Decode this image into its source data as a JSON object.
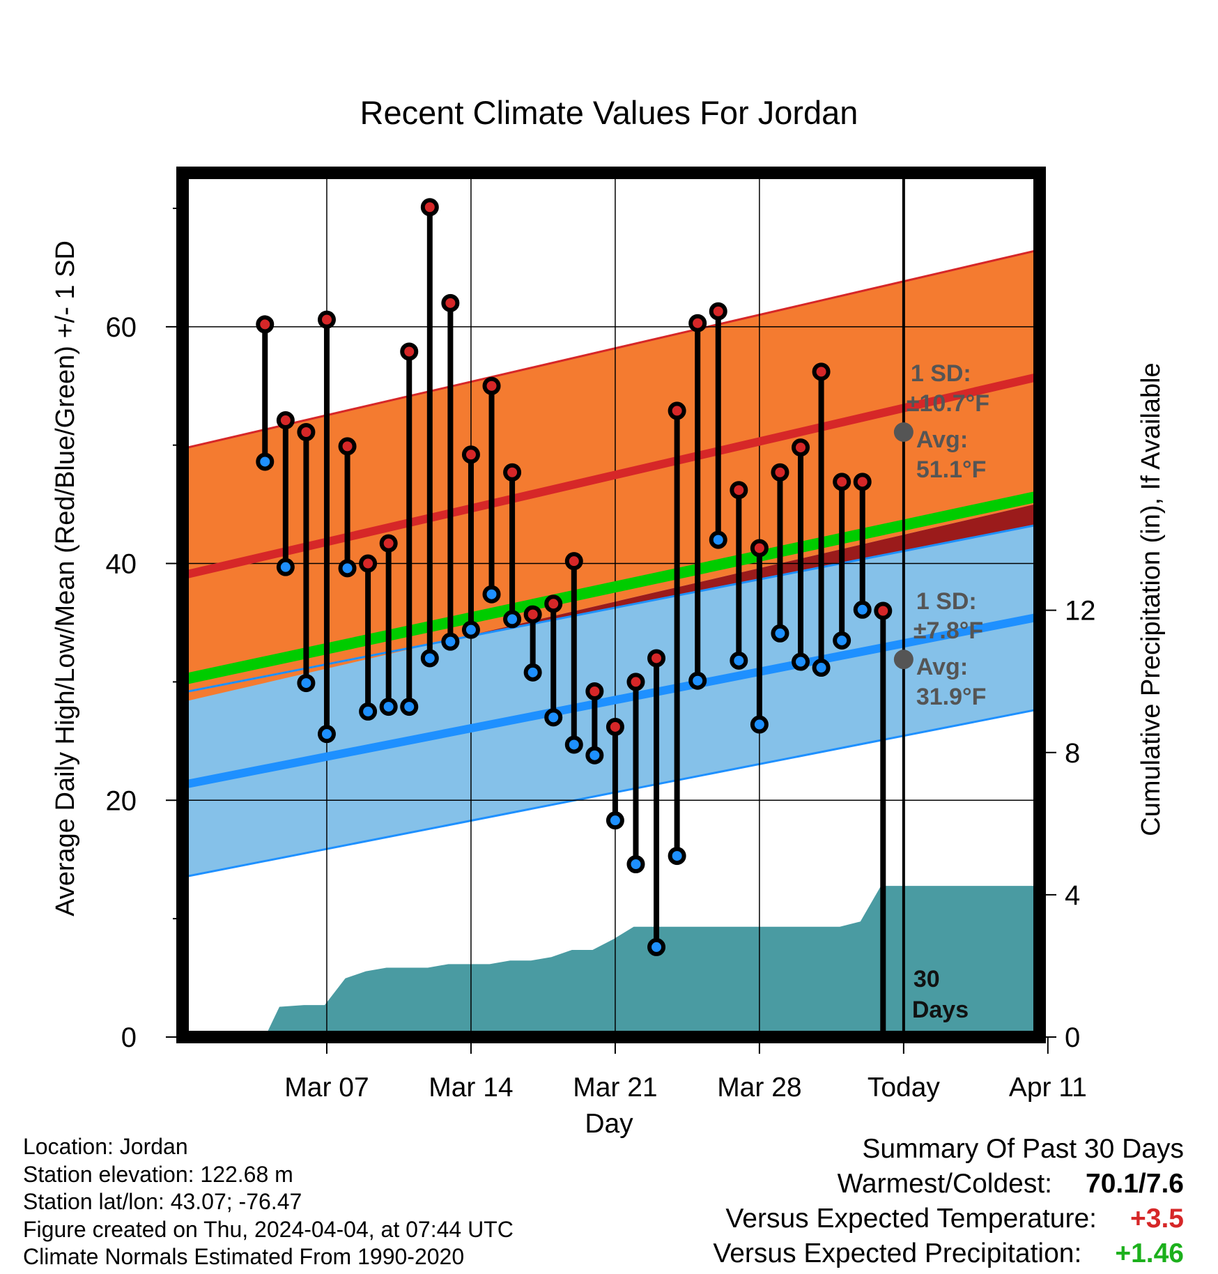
{
  "chart_data": {
    "type": "line",
    "title": "Recent Climate Values For Jordan",
    "xlabel": "Day",
    "ylabel": "Average Daily High/Low/Mean (Red/Blue/Green) +/- 1 SD",
    "y2label": "Cumulative Precipitation (in), If Available",
    "x_range_days": [
      -1.0,
      40.6
    ],
    "ylim": [
      0,
      73
    ],
    "y2lim": [
      0,
      24.3
    ],
    "yticks": [
      "0",
      "20",
      "40",
      "60"
    ],
    "y2ticks": [
      "0",
      "4",
      "8",
      "12"
    ],
    "xticks": [
      {
        "day": 6,
        "label": "Mar 07"
      },
      {
        "day": 13,
        "label": "Mar 14"
      },
      {
        "day": 20,
        "label": "Mar 21"
      },
      {
        "day": 27,
        "label": "Mar 28"
      },
      {
        "day": 34,
        "label": "Today"
      },
      {
        "day": 41,
        "label": "Apr 11"
      }
    ],
    "grid": true,
    "today_day": 34,
    "normal_high": {
      "start": 39.0,
      "end": 55.8,
      "sd": 10.7
    },
    "normal_low": {
      "start": 21.3,
      "end": 35.5,
      "sd": 7.8
    },
    "normal_mean": {
      "start": 30.2,
      "end": 45.7
    },
    "high_sd_label": "1 SD:",
    "high_sd_value": "±10.7°F",
    "high_avg_label": "Avg:",
    "high_avg_value": "51.1°F",
    "high_avg_at_today": 51.1,
    "low_sd_label": "1 SD:",
    "low_sd_value": "±7.8°F",
    "low_avg_label": "Avg:",
    "low_avg_value": "31.9°F",
    "low_avg_at_today": 31.9,
    "period_label_top": "30",
    "period_label_bottom": "Days",
    "days": [
      3,
      4,
      5,
      6,
      7,
      8,
      9,
      10,
      11,
      12,
      13,
      14,
      15,
      16,
      17,
      18,
      19,
      20,
      21,
      22,
      23,
      24,
      25,
      26,
      27,
      28,
      29,
      30,
      31,
      32,
      33
    ],
    "highs": [
      60.2,
      52.1,
      51.1,
      60.6,
      49.9,
      40.0,
      41.7,
      57.9,
      70.1,
      62.0,
      49.2,
      55.0,
      47.7,
      35.7,
      36.6,
      40.2,
      29.2,
      26.2,
      30.0,
      32.0,
      52.9,
      60.3,
      61.3,
      46.2,
      41.3,
      47.7,
      49.8,
      56.2,
      46.9,
      46.9,
      36.0
    ],
    "lows": [
      48.6,
      39.7,
      29.9,
      25.6,
      39.6,
      27.5,
      27.9,
      27.9,
      32.0,
      33.4,
      34.4,
      37.4,
      35.3,
      30.8,
      27.0,
      24.7,
      23.8,
      18.3,
      14.6,
      7.6,
      15.3,
      30.1,
      42.0,
      31.8,
      26.4,
      34.1,
      31.7,
      31.2,
      33.5,
      36.1,
      null
    ],
    "precip": [
      {
        "day": 3,
        "value": 0.0
      },
      {
        "day": 3.7,
        "value": 0.85
      },
      {
        "day": 4.9,
        "value": 0.9
      },
      {
        "day": 5.9,
        "value": 0.9
      },
      {
        "day": 6.9,
        "value": 1.65
      },
      {
        "day": 7.9,
        "value": 1.85
      },
      {
        "day": 8.9,
        "value": 1.95
      },
      {
        "day": 9.9,
        "value": 1.95
      },
      {
        "day": 10.9,
        "value": 1.95
      },
      {
        "day": 11.9,
        "value": 2.05
      },
      {
        "day": 12.9,
        "value": 2.05
      },
      {
        "day": 13.9,
        "value": 2.05
      },
      {
        "day": 14.9,
        "value": 2.15
      },
      {
        "day": 15.9,
        "value": 2.15
      },
      {
        "day": 16.9,
        "value": 2.25
      },
      {
        "day": 17.9,
        "value": 2.45
      },
      {
        "day": 18.9,
        "value": 2.45
      },
      {
        "day": 19.9,
        "value": 2.75
      },
      {
        "day": 20.9,
        "value": 3.1
      },
      {
        "day": 21.9,
        "value": 3.1
      },
      {
        "day": 22.9,
        "value": 3.1
      },
      {
        "day": 23.9,
        "value": 3.1
      },
      {
        "day": 24.9,
        "value": 3.1
      },
      {
        "day": 25.9,
        "value": 3.1
      },
      {
        "day": 26.9,
        "value": 3.1
      },
      {
        "day": 27.9,
        "value": 3.1
      },
      {
        "day": 28.9,
        "value": 3.1
      },
      {
        "day": 29.9,
        "value": 3.1
      },
      {
        "day": 30.9,
        "value": 3.1
      },
      {
        "day": 31.9,
        "value": 3.25
      },
      {
        "day": 32.9,
        "value": 4.25
      },
      {
        "day": 34.0,
        "value": 4.25
      },
      {
        "day": 40.6,
        "value": 4.25
      }
    ]
  },
  "colors": {
    "high_band": "#f47b30",
    "high_line": "#d62728",
    "low_band": "#85c1e9",
    "low_line": "#1e90ff",
    "mean_line": "#00cc00",
    "overlap": "#9b1b1b",
    "precip": "#4a9ba2",
    "annotation": "#555555",
    "high_marker": "#d62728",
    "low_marker": "#1e90ff"
  },
  "footer": {
    "location": "Location: Jordan",
    "elevation": "Station elevation: 122.68 m",
    "latlon": "Station lat/lon: 43.07; -76.47",
    "created": "Figure created on Thu, 2024-04-04, at 07:44 UTC",
    "normals": "Climate Normals Estimated From 1990-2020"
  },
  "summary": {
    "title": "Summary Of Past 30 Days",
    "warmest_label": "Warmest/Coldest:",
    "warmest_value": "70.1/7.6",
    "temp_label": "Versus Expected Temperature:",
    "temp_value": "+3.5",
    "precip_label": "Versus Expected Precipitation:",
    "precip_value": "+1.46"
  }
}
